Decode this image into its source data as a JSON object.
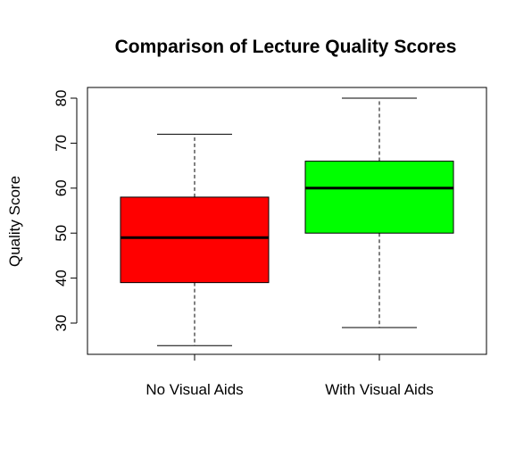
{
  "chart_data": {
    "type": "boxplot",
    "title": "Comparison of Lecture Quality Scores",
    "xlabel": "",
    "ylabel": "Quality Score",
    "ylim": [
      23,
      83
    ],
    "yticks": [
      30,
      40,
      50,
      60,
      70,
      80
    ],
    "grid": false,
    "legend": "none",
    "categories": [
      "No Visual Aids",
      "With Visual Aids"
    ],
    "boxes": [
      {
        "category": "No Visual Aids",
        "min": 25,
        "q1": 39,
        "median": 49,
        "q3": 58,
        "max": 72,
        "color": "#ff0000"
      },
      {
        "category": "With Visual Aids",
        "min": 29,
        "q1": 50,
        "median": 60,
        "q3": 66,
        "max": 80,
        "color": "#00ff00"
      }
    ]
  }
}
